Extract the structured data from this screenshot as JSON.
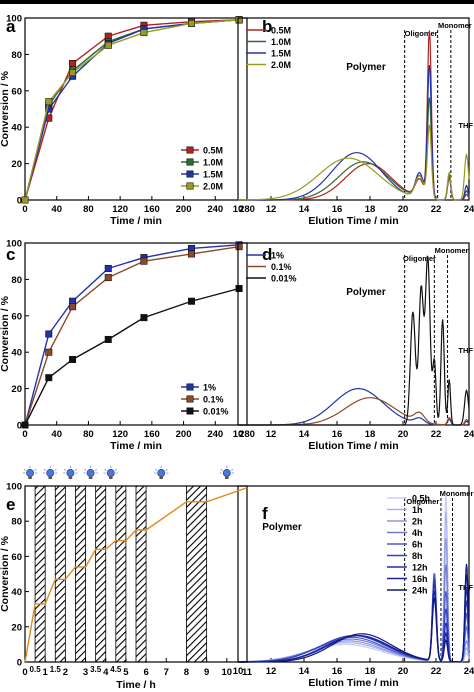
{
  "chart_data": [
    {
      "panel": "a",
      "type": "line",
      "xlabel": "Time / min",
      "ylabel": "Conversion / %",
      "xlim": [
        0,
        280
      ],
      "ylim": [
        0,
        100
      ],
      "xticks": [
        0,
        40,
        80,
        120,
        160,
        200,
        240,
        280
      ],
      "yticks": [
        0,
        20,
        40,
        60,
        80,
        100
      ],
      "legend_position": "bottom-right",
      "series": [
        {
          "name": "0.5M",
          "color": "#b22222",
          "x": [
            0,
            30,
            60,
            105,
            150,
            210,
            270
          ],
          "y": [
            0,
            45,
            75,
            90,
            96,
            98,
            99
          ]
        },
        {
          "name": "1.0M",
          "color": "#2e6b2e",
          "x": [
            0,
            30,
            60,
            105,
            150,
            210,
            270
          ],
          "y": [
            0,
            52,
            71,
            87,
            94,
            97,
            99
          ]
        },
        {
          "name": "1.5M",
          "color": "#2233aa",
          "x": [
            0,
            30,
            60,
            105,
            150,
            210,
            270
          ],
          "y": [
            0,
            50,
            68,
            86,
            94,
            97,
            99
          ]
        },
        {
          "name": "2.0M",
          "color": "#9a9a22",
          "x": [
            0,
            30,
            60,
            105,
            150,
            210,
            270
          ],
          "y": [
            0,
            54,
            70,
            85,
            92,
            97,
            99
          ]
        }
      ]
    },
    {
      "panel": "b",
      "type": "line",
      "xlabel": "Elution Time / min",
      "xlim": [
        10,
        24
      ],
      "xticks": [
        10,
        12,
        14,
        16,
        18,
        20,
        22,
        24
      ],
      "legend_position": "top-left",
      "annotations": {
        "polymer": "Polymer",
        "oligomer": "Oligomer",
        "monomer": "Monomer",
        "thf": "THF"
      },
      "dashed_lines_x": [
        20.1,
        22.1,
        22.9
      ],
      "series": [
        {
          "name": "0.5M",
          "color": "#b22222",
          "peaks": [
            [
              17.9,
              0.2,
              1.4
            ],
            [
              21.0,
              0.1,
              0.25
            ],
            [
              21.6,
              0.92,
              0.12
            ],
            [
              22.8,
              0.12,
              0.1
            ],
            [
              23.85,
              0.03,
              0.1
            ]
          ]
        },
        {
          "name": "1.0M",
          "color": "#2e6b2e",
          "peaks": [
            [
              17.6,
              0.21,
              1.5
            ],
            [
              21.0,
              0.12,
              0.25
            ],
            [
              21.6,
              0.55,
              0.12
            ],
            [
              22.8,
              0.13,
              0.1
            ],
            [
              23.85,
              0.05,
              0.1
            ]
          ]
        },
        {
          "name": "1.5M",
          "color": "#2233aa",
          "peaks": [
            [
              17.2,
              0.26,
              1.5
            ],
            [
              21.0,
              0.14,
              0.25
            ],
            [
              21.6,
              0.73,
              0.12
            ],
            [
              22.8,
              0.14,
              0.1
            ],
            [
              23.85,
              0.08,
              0.1
            ]
          ]
        },
        {
          "name": "2.0M",
          "color": "#9a9a22",
          "peaks": [
            [
              16.7,
              0.23,
              1.8
            ],
            [
              21.0,
              0.12,
              0.25
            ],
            [
              21.6,
              0.4,
              0.12
            ],
            [
              22.8,
              0.15,
              0.1
            ],
            [
              23.85,
              0.25,
              0.12
            ]
          ]
        }
      ]
    },
    {
      "panel": "c",
      "type": "line",
      "xlabel": "Time / min",
      "ylabel": "Conversion / %",
      "xlim": [
        0,
        280
      ],
      "ylim": [
        0,
        100
      ],
      "xticks": [
        0,
        40,
        80,
        120,
        160,
        200,
        240,
        280
      ],
      "yticks": [
        0,
        20,
        40,
        60,
        80,
        100
      ],
      "legend_position": "bottom-right",
      "series": [
        {
          "name": "1%",
          "color": "#2233aa",
          "x": [
            0,
            30,
            60,
            105,
            150,
            210,
            270
          ],
          "y": [
            0,
            50,
            68,
            86,
            92,
            97,
            99
          ]
        },
        {
          "name": "0.1%",
          "color": "#8b4a2b",
          "x": [
            0,
            30,
            60,
            105,
            150,
            210,
            270
          ],
          "y": [
            0,
            40,
            65,
            81,
            90,
            94,
            98
          ]
        },
        {
          "name": "0.01%",
          "color": "#111111",
          "x": [
            0,
            30,
            60,
            105,
            150,
            210,
            270
          ],
          "y": [
            0,
            26,
            36,
            47,
            59,
            68,
            75
          ]
        }
      ]
    },
    {
      "panel": "d",
      "type": "line",
      "xlabel": "Elution Time / min",
      "xlim": [
        10,
        24
      ],
      "xticks": [
        10,
        12,
        14,
        16,
        18,
        20,
        22,
        24
      ],
      "legend_position": "top-left",
      "annotations": {
        "polymer": "Polymer",
        "oligomer": "Oligomer",
        "monomer": "Monomer",
        "thf": "THF"
      },
      "dashed_lines_x": [
        20.1,
        21.9,
        22.7
      ],
      "series": [
        {
          "name": "1%",
          "color": "#2233aa",
          "peaks": [
            [
              17.3,
              0.2,
              1.5
            ],
            [
              21.0,
              0.03,
              0.3
            ],
            [
              22.8,
              0.03,
              0.1
            ],
            [
              23.85,
              0.02,
              0.1
            ]
          ]
        },
        {
          "name": "0.1%",
          "color": "#8b4a2b",
          "peaks": [
            [
              18.0,
              0.15,
              1.5
            ],
            [
              21.0,
              0.05,
              0.3
            ],
            [
              22.8,
              0.04,
              0.1
            ],
            [
              23.85,
              0.03,
              0.1
            ]
          ]
        },
        {
          "name": "0.01%",
          "color": "#111111",
          "peaks": [
            [
              20.6,
              0.62,
              0.15
            ],
            [
              21.1,
              0.75,
              0.14
            ],
            [
              21.5,
              0.92,
              0.14
            ],
            [
              21.9,
              0.35,
              0.1
            ],
            [
              22.4,
              0.58,
              0.1
            ],
            [
              22.8,
              0.25,
              0.08
            ],
            [
              23.85,
              0.19,
              0.12
            ]
          ]
        }
      ]
    },
    {
      "panel": "e",
      "type": "line",
      "xlabel": "Time / h",
      "ylabel": "Conversion / %",
      "xlim": [
        0,
        11
      ],
      "ylim": [
        0,
        100
      ],
      "xticks": [
        0,
        1,
        2,
        3,
        4,
        5,
        6,
        7,
        8,
        9,
        10,
        11
      ],
      "yticks": [
        0,
        20,
        40,
        60,
        80,
        100
      ],
      "xtick_labels_small": [
        "0.5",
        "1.5",
        "3.5",
        "4.5"
      ],
      "xtick_labels_small_at": [
        0.5,
        1.5,
        3.5,
        4.5
      ],
      "dark_intervals": [
        [
          0.5,
          1
        ],
        [
          1.5,
          2
        ],
        [
          2.5,
          3
        ],
        [
          3.5,
          4
        ],
        [
          4.5,
          5
        ],
        [
          5.5,
          6
        ],
        [
          8,
          9
        ]
      ],
      "light_icon_x": [
        0.25,
        1.25,
        2.25,
        3.25,
        4.25,
        6.75,
        10
      ],
      "series": [
        {
          "name": "conversion",
          "color": "#e08a1e",
          "x": [
            0,
            0.5,
            1,
            1.5,
            2,
            2.5,
            3,
            3.5,
            4,
            4.5,
            5,
            5.5,
            6,
            8,
            9,
            11
          ],
          "y": [
            0,
            33,
            33,
            47,
            47,
            54,
            54,
            64,
            64,
            69,
            69,
            75,
            75,
            91,
            91,
            99
          ]
        }
      ]
    },
    {
      "panel": "f",
      "type": "line",
      "xlabel": "Elution Time / min",
      "xlim": [
        10,
        24
      ],
      "xticks": [
        10,
        12,
        14,
        16,
        18,
        20,
        22,
        24
      ],
      "legend_position": "top-right",
      "annotations": {
        "polymer": "Polymer",
        "oligomer": "Oligomer",
        "monomer": "Monomer",
        "thf": "THF"
      },
      "dashed_lines_x": [
        20.1,
        22.3,
        23.0
      ],
      "series": [
        {
          "name": "0.5h",
          "color": "#c8cdf2",
          "peaks": [
            [
              16.5,
              0.1,
              2.2
            ],
            [
              21.9,
              0.35,
              0.12
            ],
            [
              22.6,
              0.95,
              0.1
            ],
            [
              23.85,
              0.05,
              0.1
            ]
          ]
        },
        {
          "name": "1h",
          "color": "#aab2ea",
          "peaks": [
            [
              16.6,
              0.11,
              2.2
            ],
            [
              21.9,
              0.4,
              0.12
            ],
            [
              22.6,
              0.85,
              0.1
            ],
            [
              23.85,
              0.08,
              0.1
            ]
          ]
        },
        {
          "name": "2h",
          "color": "#8e98e0",
          "peaks": [
            [
              16.7,
              0.12,
              2.1
            ],
            [
              21.9,
              0.45,
              0.12
            ],
            [
              22.6,
              0.7,
              0.1
            ],
            [
              23.85,
              0.12,
              0.1
            ]
          ]
        },
        {
          "name": "4h",
          "color": "#6f7bd6",
          "peaks": [
            [
              16.8,
              0.13,
              2.1
            ],
            [
              21.9,
              0.5,
              0.12
            ],
            [
              22.6,
              0.55,
              0.1
            ],
            [
              23.85,
              0.2,
              0.1
            ]
          ]
        },
        {
          "name": "6h",
          "color": "#4e5acc",
          "peaks": [
            [
              16.9,
              0.14,
              2.0
            ],
            [
              21.9,
              0.5,
              0.12
            ],
            [
              22.6,
              0.4,
              0.1
            ],
            [
              23.85,
              0.28,
              0.1
            ]
          ]
        },
        {
          "name": "8h",
          "color": "#3340bf",
          "peaks": [
            [
              17.0,
              0.15,
              2.0
            ],
            [
              21.9,
              0.47,
              0.12
            ],
            [
              22.6,
              0.3,
              0.1
            ],
            [
              23.85,
              0.35,
              0.1
            ]
          ]
        },
        {
          "name": "12h",
          "color": "#2030b0",
          "peaks": [
            [
              17.2,
              0.15,
              1.9
            ],
            [
              21.9,
              0.44,
              0.12
            ],
            [
              22.6,
              0.22,
              0.1
            ],
            [
              23.85,
              0.42,
              0.1
            ]
          ]
        },
        {
          "name": "16h",
          "color": "#18249a",
          "peaks": [
            [
              17.3,
              0.15,
              1.9
            ],
            [
              21.9,
              0.4,
              0.12
            ],
            [
              22.6,
              0.16,
              0.1
            ],
            [
              23.85,
              0.5,
              0.1
            ]
          ]
        },
        {
          "name": "24h",
          "color": "#0e1878",
          "peaks": [
            [
              17.5,
              0.16,
              1.8
            ],
            [
              21.9,
              0.36,
              0.12
            ],
            [
              22.6,
              0.12,
              0.1
            ],
            [
              23.85,
              0.56,
              0.1
            ]
          ]
        }
      ]
    }
  ]
}
